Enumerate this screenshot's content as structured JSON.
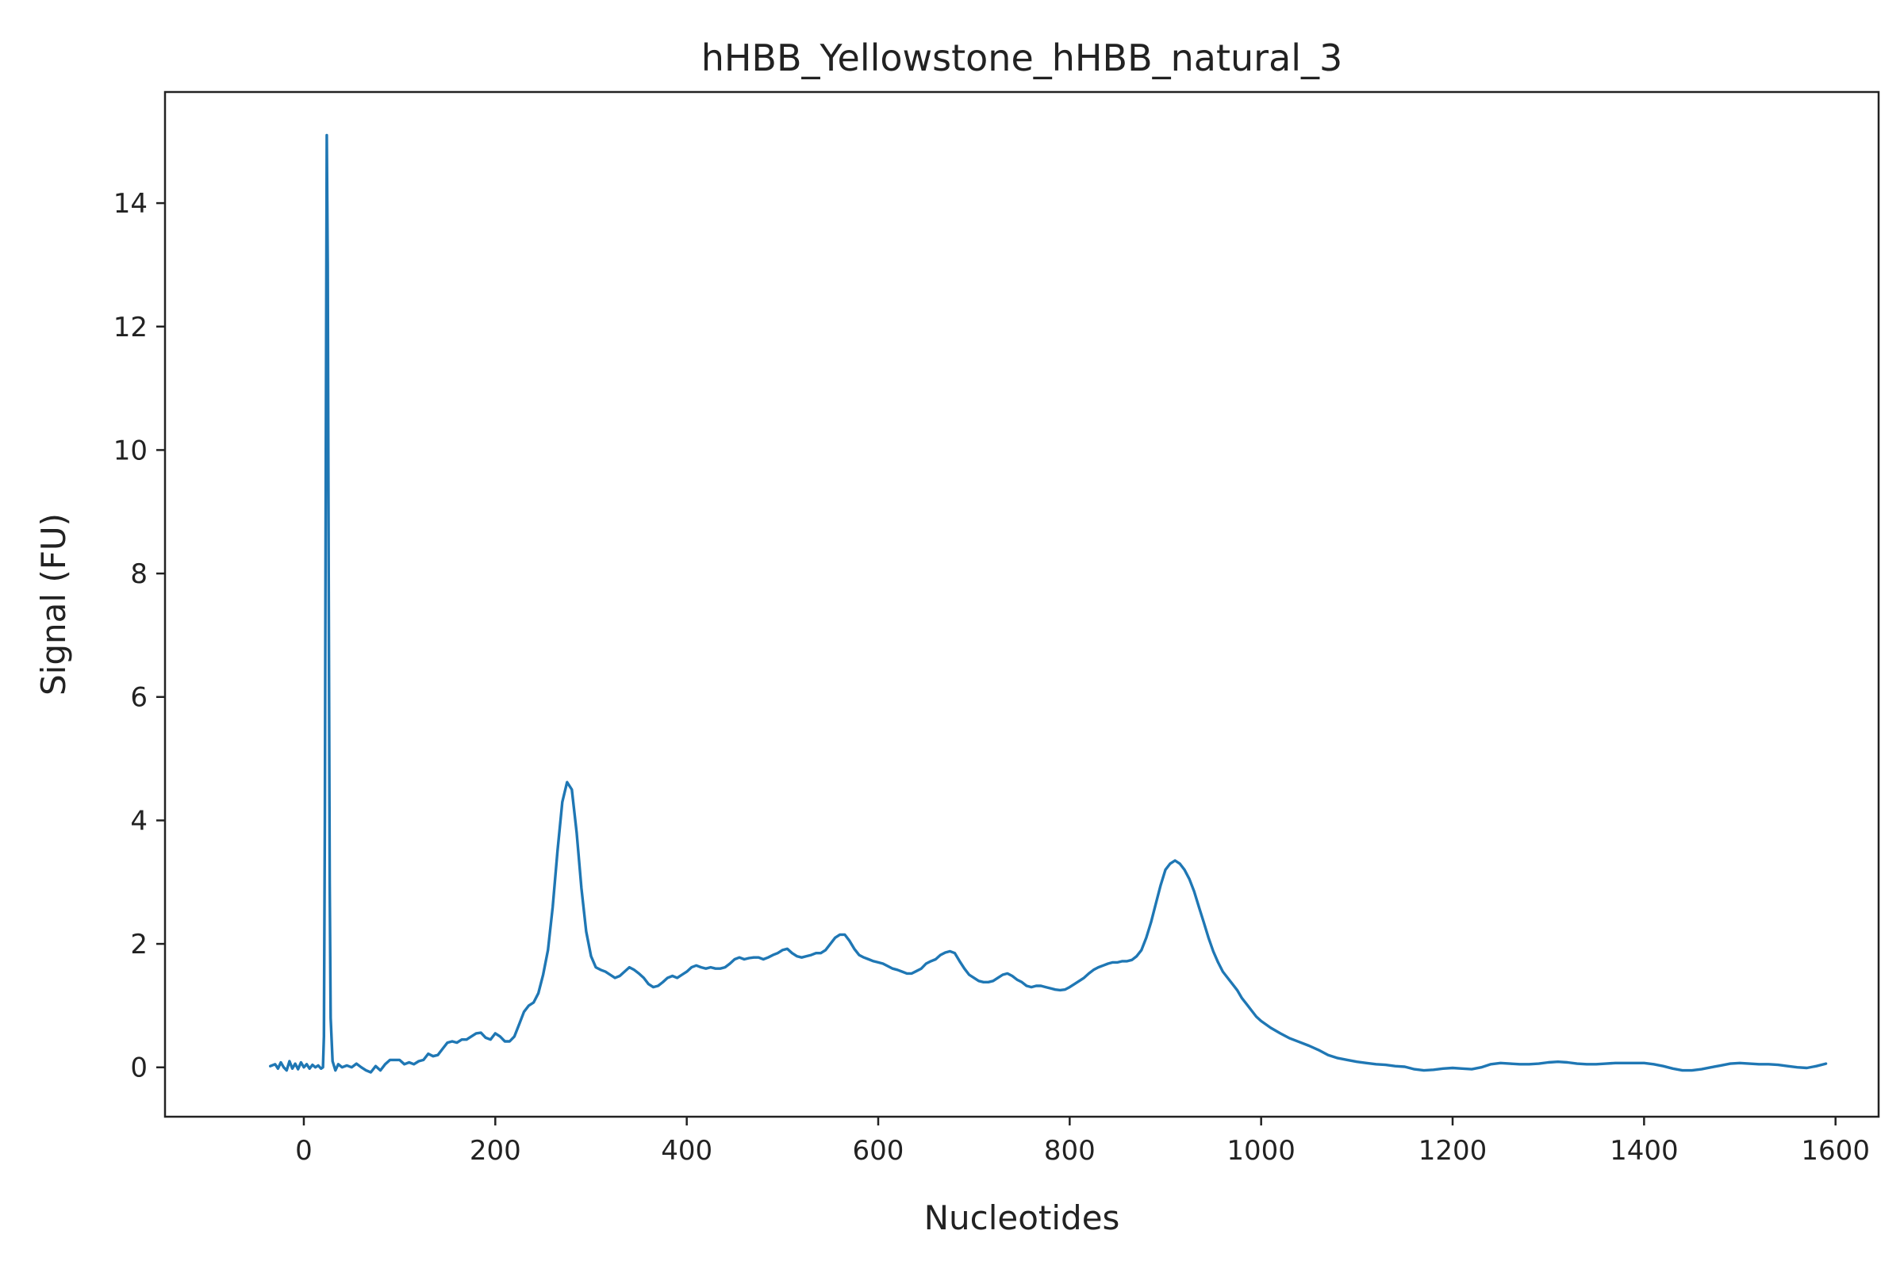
{
  "chart_data": {
    "type": "line",
    "title": "hHBB_Yellowstone_hHBB_natural_3",
    "xlabel": "Nucleotides",
    "ylabel": "Signal (FU)",
    "xlim": [
      -145,
      1645
    ],
    "ylim": [
      -0.8,
      15.8
    ],
    "xticks": [
      0,
      200,
      400,
      600,
      800,
      1000,
      1200,
      1400,
      1600
    ],
    "yticks": [
      0,
      2,
      4,
      6,
      8,
      10,
      12,
      14
    ],
    "grid": false,
    "series": [
      {
        "color": "#1f77b4",
        "points": [
          [
            -35,
            0.02
          ],
          [
            -30,
            0.05
          ],
          [
            -27,
            -0.02
          ],
          [
            -24,
            0.08
          ],
          [
            -21,
            0.0
          ],
          [
            -18,
            -0.05
          ],
          [
            -15,
            0.1
          ],
          [
            -12,
            -0.02
          ],
          [
            -9,
            0.06
          ],
          [
            -6,
            -0.03
          ],
          [
            -3,
            0.08
          ],
          [
            0,
            0.0
          ],
          [
            3,
            0.05
          ],
          [
            6,
            -0.02
          ],
          [
            9,
            0.04
          ],
          [
            12,
            0.0
          ],
          [
            15,
            0.03
          ],
          [
            18,
            -0.02
          ],
          [
            20,
            0.0
          ],
          [
            21,
            0.5
          ],
          [
            22,
            4.0
          ],
          [
            23,
            10.0
          ],
          [
            24,
            15.1
          ],
          [
            25,
            13.0
          ],
          [
            26,
            8.0
          ],
          [
            27,
            3.0
          ],
          [
            28,
            0.8
          ],
          [
            30,
            0.1
          ],
          [
            33,
            -0.05
          ],
          [
            36,
            0.05
          ],
          [
            40,
            0.0
          ],
          [
            45,
            0.03
          ],
          [
            50,
            0.0
          ],
          [
            55,
            0.06
          ],
          [
            60,
            0.0
          ],
          [
            65,
            -0.05
          ],
          [
            70,
            -0.08
          ],
          [
            75,
            0.02
          ],
          [
            80,
            -0.05
          ],
          [
            85,
            0.05
          ],
          [
            90,
            0.12
          ],
          [
            95,
            0.12
          ],
          [
            100,
            0.12
          ],
          [
            105,
            0.05
          ],
          [
            110,
            0.08
          ],
          [
            115,
            0.05
          ],
          [
            120,
            0.1
          ],
          [
            125,
            0.12
          ],
          [
            130,
            0.22
          ],
          [
            135,
            0.18
          ],
          [
            140,
            0.2
          ],
          [
            145,
            0.3
          ],
          [
            150,
            0.4
          ],
          [
            155,
            0.42
          ],
          [
            160,
            0.4
          ],
          [
            165,
            0.45
          ],
          [
            170,
            0.45
          ],
          [
            175,
            0.5
          ],
          [
            180,
            0.55
          ],
          [
            185,
            0.56
          ],
          [
            190,
            0.48
          ],
          [
            195,
            0.45
          ],
          [
            200,
            0.55
          ],
          [
            205,
            0.5
          ],
          [
            210,
            0.42
          ],
          [
            215,
            0.42
          ],
          [
            220,
            0.5
          ],
          [
            225,
            0.7
          ],
          [
            230,
            0.9
          ],
          [
            235,
            1.0
          ],
          [
            240,
            1.05
          ],
          [
            245,
            1.2
          ],
          [
            250,
            1.5
          ],
          [
            255,
            1.9
          ],
          [
            260,
            2.6
          ],
          [
            265,
            3.5
          ],
          [
            270,
            4.3
          ],
          [
            275,
            4.62
          ],
          [
            280,
            4.5
          ],
          [
            285,
            3.8
          ],
          [
            290,
            2.9
          ],
          [
            295,
            2.2
          ],
          [
            300,
            1.8
          ],
          [
            305,
            1.62
          ],
          [
            310,
            1.58
          ],
          [
            315,
            1.55
          ],
          [
            320,
            1.5
          ],
          [
            325,
            1.45
          ],
          [
            330,
            1.48
          ],
          [
            335,
            1.55
          ],
          [
            340,
            1.62
          ],
          [
            345,
            1.58
          ],
          [
            350,
            1.52
          ],
          [
            355,
            1.45
          ],
          [
            360,
            1.35
          ],
          [
            365,
            1.3
          ],
          [
            370,
            1.32
          ],
          [
            375,
            1.38
          ],
          [
            380,
            1.45
          ],
          [
            385,
            1.48
          ],
          [
            390,
            1.45
          ],
          [
            395,
            1.5
          ],
          [
            400,
            1.55
          ],
          [
            405,
            1.62
          ],
          [
            410,
            1.65
          ],
          [
            415,
            1.62
          ],
          [
            420,
            1.6
          ],
          [
            425,
            1.62
          ],
          [
            430,
            1.6
          ],
          [
            435,
            1.6
          ],
          [
            440,
            1.62
          ],
          [
            445,
            1.68
          ],
          [
            450,
            1.75
          ],
          [
            455,
            1.78
          ],
          [
            460,
            1.75
          ],
          [
            465,
            1.77
          ],
          [
            470,
            1.78
          ],
          [
            475,
            1.78
          ],
          [
            480,
            1.75
          ],
          [
            485,
            1.78
          ],
          [
            490,
            1.82
          ],
          [
            495,
            1.85
          ],
          [
            500,
            1.9
          ],
          [
            505,
            1.92
          ],
          [
            510,
            1.85
          ],
          [
            515,
            1.8
          ],
          [
            520,
            1.78
          ],
          [
            525,
            1.8
          ],
          [
            530,
            1.82
          ],
          [
            535,
            1.85
          ],
          [
            540,
            1.85
          ],
          [
            545,
            1.9
          ],
          [
            550,
            2.0
          ],
          [
            555,
            2.1
          ],
          [
            560,
            2.15
          ],
          [
            565,
            2.15
          ],
          [
            570,
            2.05
          ],
          [
            575,
            1.92
          ],
          [
            580,
            1.82
          ],
          [
            585,
            1.78
          ],
          [
            590,
            1.75
          ],
          [
            595,
            1.72
          ],
          [
            600,
            1.7
          ],
          [
            605,
            1.68
          ],
          [
            610,
            1.64
          ],
          [
            615,
            1.6
          ],
          [
            620,
            1.58
          ],
          [
            625,
            1.55
          ],
          [
            630,
            1.52
          ],
          [
            635,
            1.52
          ],
          [
            640,
            1.56
          ],
          [
            645,
            1.6
          ],
          [
            650,
            1.68
          ],
          [
            655,
            1.72
          ],
          [
            660,
            1.75
          ],
          [
            665,
            1.82
          ],
          [
            670,
            1.86
          ],
          [
            675,
            1.88
          ],
          [
            680,
            1.85
          ],
          [
            685,
            1.72
          ],
          [
            690,
            1.6
          ],
          [
            695,
            1.5
          ],
          [
            700,
            1.45
          ],
          [
            705,
            1.4
          ],
          [
            710,
            1.38
          ],
          [
            715,
            1.38
          ],
          [
            720,
            1.4
          ],
          [
            725,
            1.45
          ],
          [
            730,
            1.5
          ],
          [
            735,
            1.52
          ],
          [
            740,
            1.48
          ],
          [
            745,
            1.42
          ],
          [
            750,
            1.38
          ],
          [
            755,
            1.32
          ],
          [
            760,
            1.3
          ],
          [
            765,
            1.32
          ],
          [
            770,
            1.32
          ],
          [
            775,
            1.3
          ],
          [
            780,
            1.28
          ],
          [
            785,
            1.26
          ],
          [
            790,
            1.25
          ],
          [
            795,
            1.26
          ],
          [
            800,
            1.3
          ],
          [
            805,
            1.35
          ],
          [
            810,
            1.4
          ],
          [
            815,
            1.45
          ],
          [
            820,
            1.52
          ],
          [
            825,
            1.58
          ],
          [
            830,
            1.62
          ],
          [
            835,
            1.65
          ],
          [
            840,
            1.68
          ],
          [
            845,
            1.7
          ],
          [
            850,
            1.7
          ],
          [
            855,
            1.72
          ],
          [
            860,
            1.72
          ],
          [
            865,
            1.74
          ],
          [
            870,
            1.8
          ],
          [
            875,
            1.9
          ],
          [
            880,
            2.1
          ],
          [
            885,
            2.35
          ],
          [
            890,
            2.65
          ],
          [
            895,
            2.95
          ],
          [
            900,
            3.2
          ],
          [
            905,
            3.3
          ],
          [
            910,
            3.35
          ],
          [
            915,
            3.3
          ],
          [
            920,
            3.2
          ],
          [
            925,
            3.05
          ],
          [
            930,
            2.85
          ],
          [
            935,
            2.6
          ],
          [
            940,
            2.35
          ],
          [
            945,
            2.1
          ],
          [
            950,
            1.88
          ],
          [
            955,
            1.7
          ],
          [
            960,
            1.55
          ],
          [
            965,
            1.45
          ],
          [
            970,
            1.35
          ],
          [
            975,
            1.25
          ],
          [
            980,
            1.12
          ],
          [
            985,
            1.02
          ],
          [
            990,
            0.92
          ],
          [
            995,
            0.82
          ],
          [
            1000,
            0.75
          ],
          [
            1010,
            0.64
          ],
          [
            1020,
            0.55
          ],
          [
            1030,
            0.47
          ],
          [
            1040,
            0.41
          ],
          [
            1050,
            0.35
          ],
          [
            1060,
            0.28
          ],
          [
            1070,
            0.2
          ],
          [
            1080,
            0.15
          ],
          [
            1090,
            0.12
          ],
          [
            1100,
            0.09
          ],
          [
            1110,
            0.07
          ],
          [
            1120,
            0.05
          ],
          [
            1130,
            0.04
          ],
          [
            1140,
            0.02
          ],
          [
            1150,
            0.01
          ],
          [
            1160,
            -0.03
          ],
          [
            1170,
            -0.05
          ],
          [
            1180,
            -0.04
          ],
          [
            1190,
            -0.02
          ],
          [
            1200,
            -0.01
          ],
          [
            1210,
            -0.02
          ],
          [
            1220,
            -0.03
          ],
          [
            1230,
            0.0
          ],
          [
            1240,
            0.05
          ],
          [
            1250,
            0.07
          ],
          [
            1260,
            0.06
          ],
          [
            1270,
            0.05
          ],
          [
            1280,
            0.05
          ],
          [
            1290,
            0.06
          ],
          [
            1300,
            0.08
          ],
          [
            1310,
            0.09
          ],
          [
            1320,
            0.08
          ],
          [
            1330,
            0.06
          ],
          [
            1340,
            0.05
          ],
          [
            1350,
            0.05
          ],
          [
            1360,
            0.06
          ],
          [
            1370,
            0.07
          ],
          [
            1380,
            0.07
          ],
          [
            1390,
            0.07
          ],
          [
            1400,
            0.07
          ],
          [
            1410,
            0.05
          ],
          [
            1420,
            0.02
          ],
          [
            1430,
            -0.02
          ],
          [
            1440,
            -0.05
          ],
          [
            1450,
            -0.05
          ],
          [
            1460,
            -0.03
          ],
          [
            1470,
            0.0
          ],
          [
            1480,
            0.03
          ],
          [
            1490,
            0.06
          ],
          [
            1500,
            0.07
          ],
          [
            1510,
            0.06
          ],
          [
            1520,
            0.05
          ],
          [
            1530,
            0.05
          ],
          [
            1540,
            0.04
          ],
          [
            1550,
            0.02
          ],
          [
            1560,
            0.0
          ],
          [
            1570,
            -0.01
          ],
          [
            1580,
            0.02
          ],
          [
            1590,
            0.06
          ]
        ]
      }
    ]
  }
}
